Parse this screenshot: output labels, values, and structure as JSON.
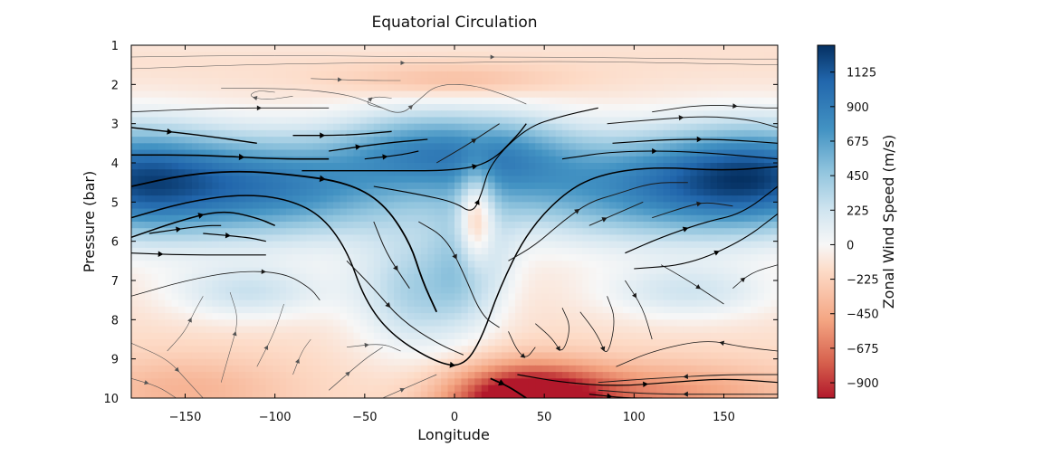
{
  "chart_data": {
    "type": "heatmap",
    "title": "Equatorial Circulation",
    "xlabel": "Longitude",
    "ylabel": "Pressure (bar)",
    "colorbar_label": "Zonal Wind Speed (m/s)",
    "xlim": [
      -180,
      180
    ],
    "ylim": [
      10,
      1
    ],
    "y_inverted": true,
    "xticks": [
      -150,
      -100,
      -50,
      0,
      50,
      100,
      150
    ],
    "xtick_labels": [
      "−150",
      "−100",
      "−50",
      "0",
      "50",
      "100",
      "150"
    ],
    "yticks": [
      1,
      2,
      3,
      4,
      5,
      6,
      7,
      8,
      9,
      10
    ],
    "ytick_labels": [
      "1",
      "2",
      "3",
      "4",
      "5",
      "6",
      "7",
      "8",
      "9",
      "10"
    ],
    "colorbar_range": [
      -1000,
      1300
    ],
    "colorbar_ticks": [
      1125,
      900,
      675,
      450,
      225,
      0,
      -225,
      -450,
      -675,
      -900
    ],
    "colorbar_tick_labels": [
      "1125",
      "900",
      "675",
      "450",
      "225",
      "0",
      "−225",
      "−450",
      "−675",
      "−900"
    ],
    "colormap": "RdBu",
    "colors": {
      "negative": "#b2182b",
      "zero": "#f7f7f7",
      "positive": "#053061"
    },
    "grid": false,
    "streamlines": [
      {
        "points": [
          [
            -180,
            3.1
          ],
          [
            -140,
            3.3
          ],
          [
            -110,
            3.5
          ]
        ],
        "weight": 1.4
      },
      {
        "points": [
          [
            -180,
            3.8
          ],
          [
            -140,
            3.8
          ],
          [
            -100,
            3.9
          ],
          [
            -70,
            3.9
          ]
        ],
        "weight": 1.6
      },
      {
        "points": [
          [
            -180,
            4.6
          ],
          [
            -150,
            4.3
          ],
          [
            -120,
            4.2
          ],
          [
            -90,
            4.3
          ],
          [
            -60,
            4.5
          ],
          [
            -40,
            5.0
          ],
          [
            -25,
            6.0
          ],
          [
            -18,
            7.0
          ],
          [
            -10,
            7.8
          ]
        ],
        "weight": 1.8
      },
      {
        "points": [
          [
            -180,
            5.4
          ],
          [
            -150,
            5.0
          ],
          [
            -120,
            4.8
          ],
          [
            -95,
            4.9
          ],
          [
            -75,
            5.3
          ],
          [
            -60,
            6.2
          ],
          [
            -50,
            7.5
          ],
          [
            -35,
            8.4
          ],
          [
            -10,
            9.1
          ],
          [
            5,
            9.2
          ],
          [
            15,
            8.5
          ],
          [
            25,
            7.2
          ],
          [
            40,
            5.8
          ],
          [
            60,
            4.8
          ],
          [
            80,
            4.3
          ],
          [
            110,
            4.1
          ],
          [
            150,
            4.2
          ],
          [
            180,
            4.1
          ]
        ],
        "weight": 1.5
      },
      {
        "points": [
          [
            -180,
            5.9
          ],
          [
            -155,
            5.5
          ],
          [
            -130,
            5.2
          ],
          [
            -110,
            5.4
          ],
          [
            -100,
            5.6
          ]
        ],
        "weight": 1.5
      },
      {
        "points": [
          [
            -170,
            5.8
          ],
          [
            -140,
            5.6
          ],
          [
            -130,
            5.6
          ]
        ],
        "weight": 1.2
      },
      {
        "points": [
          [
            -140,
            5.8
          ],
          [
            -115,
            5.9
          ],
          [
            -105,
            6.0
          ]
        ],
        "weight": 1.2
      },
      {
        "points": [
          [
            -180,
            6.3
          ],
          [
            -150,
            6.35
          ],
          [
            -105,
            6.35
          ]
        ],
        "weight": 1.2
      },
      {
        "points": [
          [
            -90,
            3.3
          ],
          [
            -60,
            3.3
          ],
          [
            -35,
            3.2
          ]
        ],
        "weight": 1.3
      },
      {
        "points": [
          [
            -70,
            3.7
          ],
          [
            -40,
            3.5
          ],
          [
            -15,
            3.4
          ]
        ],
        "weight": 1.3
      },
      {
        "points": [
          [
            -85,
            4.2
          ],
          [
            -40,
            4.2
          ],
          [
            0,
            4.2
          ],
          [
            20,
            4.0
          ],
          [
            35,
            3.3
          ],
          [
            40,
            3.0
          ]
        ],
        "weight": 1.3
      },
      {
        "points": [
          [
            -50,
            3.9
          ],
          [
            -30,
            3.8
          ],
          [
            -20,
            3.7
          ]
        ],
        "weight": 1.2
      },
      {
        "points": [
          [
            -45,
            4.6
          ],
          [
            -20,
            4.8
          ],
          [
            0,
            5.0
          ],
          [
            10,
            5.3
          ],
          [
            15,
            4.8
          ],
          [
            20,
            4.0
          ],
          [
            40,
            3.1
          ],
          [
            60,
            2.8
          ],
          [
            80,
            2.6
          ]
        ],
        "weight": 1.1
      },
      {
        "points": [
          [
            -10,
            4.0
          ],
          [
            5,
            3.6
          ],
          [
            15,
            3.3
          ],
          [
            25,
            3.0
          ]
        ],
        "weight": 1.0
      },
      {
        "points": [
          [
            -20,
            5.5
          ],
          [
            -5,
            5.9
          ],
          [
            5,
            6.8
          ],
          [
            15,
            7.9
          ],
          [
            25,
            8.2
          ]
        ],
        "weight": 1.0
      },
      {
        "points": [
          [
            -45,
            5.5
          ],
          [
            -38,
            6.3
          ],
          [
            -28,
            7.0
          ],
          [
            -25,
            7.2
          ]
        ],
        "weight": 1.0
      },
      {
        "points": [
          [
            -60,
            6.5
          ],
          [
            -45,
            7.2
          ],
          [
            -30,
            8.0
          ],
          [
            -10,
            8.6
          ],
          [
            5,
            8.9
          ]
        ],
        "weight": 1.0
      },
      {
        "points": [
          [
            30,
            6.5
          ],
          [
            45,
            6.1
          ],
          [
            60,
            5.5
          ],
          [
            75,
            5.0
          ],
          [
            90,
            4.8
          ],
          [
            110,
            4.5
          ],
          [
            130,
            4.5
          ]
        ],
        "weight": 1.0
      },
      {
        "points": [
          [
            75,
            5.6
          ],
          [
            90,
            5.3
          ],
          [
            105,
            5.0
          ]
        ],
        "weight": 1.0
      },
      {
        "points": [
          [
            110,
            5.4
          ],
          [
            130,
            5.1
          ],
          [
            140,
            5.0
          ],
          [
            155,
            5.1
          ]
        ],
        "weight": 1.0
      },
      {
        "points": [
          [
            95,
            6.3
          ],
          [
            115,
            5.9
          ],
          [
            140,
            5.5
          ],
          [
            160,
            5.3
          ],
          [
            180,
            4.6
          ]
        ],
        "weight": 1.2
      },
      {
        "points": [
          [
            100,
            6.7
          ],
          [
            130,
            6.6
          ],
          [
            160,
            6.0
          ],
          [
            180,
            5.3
          ]
        ],
        "weight": 1.1
      },
      {
        "points": [
          [
            88,
            3.5
          ],
          [
            120,
            3.4
          ],
          [
            150,
            3.4
          ],
          [
            180,
            3.5
          ]
        ],
        "weight": 1.2
      },
      {
        "points": [
          [
            85,
            3.0
          ],
          [
            110,
            2.9
          ],
          [
            140,
            2.8
          ],
          [
            165,
            2.9
          ],
          [
            180,
            3.1
          ]
        ],
        "weight": 1.0
      },
      {
        "points": [
          [
            110,
            2.7
          ],
          [
            140,
            2.5
          ],
          [
            170,
            2.6
          ],
          [
            180,
            2.6
          ]
        ],
        "weight": 0.9
      },
      {
        "points": [
          [
            60,
            3.9
          ],
          [
            90,
            3.7
          ],
          [
            130,
            3.7
          ],
          [
            180,
            3.9
          ]
        ],
        "weight": 1.1
      },
      {
        "points": [
          [
            -180,
            2.7
          ],
          [
            -130,
            2.6
          ],
          [
            -90,
            2.6
          ],
          [
            -70,
            2.6
          ]
        ],
        "weight": 0.8
      },
      {
        "points": [
          [
            -130,
            2.1
          ],
          [
            -90,
            2.1
          ],
          [
            -60,
            2.25
          ],
          [
            -45,
            2.5
          ],
          [
            -30,
            2.8
          ],
          [
            -20,
            2.4
          ],
          [
            -10,
            2.0
          ],
          [
            10,
            2.0
          ],
          [
            30,
            2.3
          ],
          [
            40,
            2.5
          ]
        ],
        "weight": 0.7
      },
      {
        "points": [
          [
            -80,
            1.85
          ],
          [
            -50,
            1.9
          ],
          [
            -30,
            1.9
          ]
        ],
        "weight": 0.6
      },
      {
        "points": [
          [
            -180,
            1.3
          ],
          [
            -100,
            1.25
          ],
          [
            -20,
            1.3
          ],
          [
            60,
            1.3
          ],
          [
            140,
            1.35
          ],
          [
            180,
            1.35
          ]
        ],
        "weight": 0.5
      },
      {
        "points": [
          [
            -180,
            1.6
          ],
          [
            -120,
            1.5
          ],
          [
            -60,
            1.45
          ],
          [
            0,
            1.45
          ],
          [
            60,
            1.4
          ],
          [
            180,
            1.5
          ]
        ],
        "weight": 0.5
      },
      {
        "points": [
          [
            -180,
            7.4
          ],
          [
            -150,
            7.0
          ],
          [
            -120,
            6.75
          ],
          [
            -95,
            6.8
          ],
          [
            -80,
            7.2
          ],
          [
            -75,
            7.5
          ]
        ],
        "weight": 0.8
      },
      {
        "points": [
          [
            -160,
            8.8
          ],
          [
            -150,
            8.3
          ],
          [
            -145,
            7.8
          ],
          [
            -140,
            7.4
          ]
        ],
        "weight": 0.6
      },
      {
        "points": [
          [
            -130,
            9.6
          ],
          [
            -125,
            8.8
          ],
          [
            -120,
            8.0
          ],
          [
            -125,
            7.3
          ]
        ],
        "weight": 0.6
      },
      {
        "points": [
          [
            -180,
            8.6
          ],
          [
            -160,
            9.0
          ],
          [
            -150,
            9.5
          ],
          [
            -140,
            10.0
          ]
        ],
        "weight": 0.6
      },
      {
        "points": [
          [
            -180,
            9.5
          ],
          [
            -165,
            9.7
          ],
          [
            -155,
            10.0
          ]
        ],
        "weight": 0.6
      },
      {
        "points": [
          [
            -110,
            9.2
          ],
          [
            -100,
            8.3
          ],
          [
            -95,
            7.6
          ]
        ],
        "weight": 0.6
      },
      {
        "points": [
          [
            -90,
            9.4
          ],
          [
            -85,
            8.8
          ],
          [
            -80,
            8.5
          ]
        ],
        "weight": 0.6
      },
      {
        "points": [
          [
            -70,
            9.8
          ],
          [
            -50,
            9.0
          ],
          [
            -40,
            8.7
          ]
        ],
        "weight": 0.7
      },
      {
        "points": [
          [
            -60,
            8.7
          ],
          [
            -40,
            8.6
          ],
          [
            -30,
            8.8
          ]
        ],
        "weight": 0.7
      },
      {
        "points": [
          [
            -40,
            10.0
          ],
          [
            -20,
            9.6
          ],
          [
            -10,
            9.4
          ]
        ],
        "weight": 0.7
      },
      {
        "points": [
          [
            30,
            8.3
          ],
          [
            35,
            8.8
          ],
          [
            40,
            9.0
          ],
          [
            45,
            8.7
          ]
        ],
        "weight": 0.8
      },
      {
        "points": [
          [
            45,
            8.1
          ],
          [
            55,
            8.5
          ],
          [
            60,
            8.9
          ],
          [
            65,
            8.2
          ],
          [
            60,
            7.7
          ]
        ],
        "weight": 0.8
      },
      {
        "points": [
          [
            70,
            7.8
          ],
          [
            80,
            8.4
          ],
          [
            85,
            9.0
          ],
          [
            90,
            8.0
          ],
          [
            85,
            7.4
          ]
        ],
        "weight": 0.8
      },
      {
        "points": [
          [
            95,
            7.0
          ],
          [
            105,
            7.7
          ],
          [
            110,
            8.5
          ]
        ],
        "weight": 0.8
      },
      {
        "points": [
          [
            115,
            6.6
          ],
          [
            130,
            7.0
          ],
          [
            140,
            7.3
          ],
          [
            150,
            7.6
          ]
        ],
        "weight": 0.8
      },
      {
        "points": [
          [
            155,
            7.2
          ],
          [
            165,
            6.8
          ],
          [
            180,
            6.6
          ]
        ],
        "weight": 0.8
      },
      {
        "points": [
          [
            180,
            8.8
          ],
          [
            160,
            8.7
          ],
          [
            140,
            8.5
          ],
          [
            110,
            8.8
          ],
          [
            90,
            9.2
          ]
        ],
        "weight": 0.8
      },
      {
        "points": [
          [
            180,
            9.4
          ],
          [
            150,
            9.4
          ],
          [
            110,
            9.5
          ],
          [
            80,
            9.6
          ]
        ],
        "weight": 0.9
      },
      {
        "points": [
          [
            180,
            9.9
          ],
          [
            150,
            9.9
          ],
          [
            110,
            9.9
          ],
          [
            80,
            9.8
          ]
        ],
        "weight": 1.0
      },
      {
        "points": [
          [
            20,
            9.5
          ],
          [
            30,
            9.7
          ],
          [
            40,
            10.0
          ]
        ],
        "weight": 1.8
      },
      {
        "points": [
          [
            35,
            9.4
          ],
          [
            60,
            9.6
          ],
          [
            90,
            9.7
          ],
          [
            120,
            9.6
          ],
          [
            150,
            9.5
          ],
          [
            180,
            9.6
          ]
        ],
        "weight": 1.2
      },
      {
        "points": [
          [
            75,
            9.9
          ],
          [
            95,
            10.0
          ],
          [
            110,
            10.0
          ]
        ],
        "weight": 1.2
      },
      {
        "points": [
          [
            -90,
            2.3
          ],
          [
            -105,
            2.4
          ],
          [
            -115,
            2.3
          ],
          [
            -110,
            2.15
          ],
          [
            -100,
            2.2
          ]
        ],
        "weight": 0.6
      },
      {
        "points": [
          [
            -40,
            2.6
          ],
          [
            -50,
            2.5
          ],
          [
            -45,
            2.3
          ],
          [
            -35,
            2.35
          ]
        ],
        "weight": 0.6
      }
    ]
  }
}
